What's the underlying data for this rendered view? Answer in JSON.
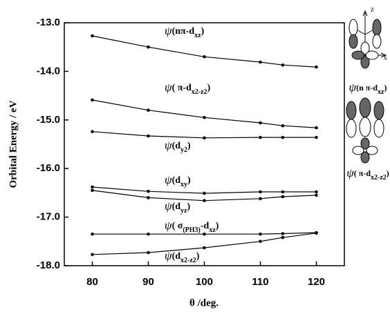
{
  "chart_data": {
    "type": "line",
    "y_label": "Orbital Energy / eV",
    "x_label": "θ /deg.",
    "xlim": [
      75,
      125
    ],
    "xticks": [
      80,
      90,
      100,
      110,
      120
    ],
    "ylim": [
      -18.0,
      -13.0
    ],
    "yticks": [
      {
        "value": -13.0,
        "label": "-13.0"
      },
      {
        "value": -14.0,
        "label": "-14.0"
      },
      {
        "value": -15.0,
        "label": "-15.0"
      },
      {
        "value": -16.0,
        "label": "-16.0"
      },
      {
        "value": -17.0,
        "label": "-17.0"
      },
      {
        "value": -18.0,
        "label": "-18.0"
      }
    ],
    "x": [
      80,
      90,
      100,
      110,
      114,
      120
    ],
    "series": [
      {
        "name": [
          "ψ",
          "(nπ-d",
          "xz",
          ")"
        ],
        "color": "#000",
        "values": [
          -13.27,
          -13.5,
          -13.7,
          -13.81,
          -13.87,
          -13.91
        ]
      },
      {
        "name": [
          "ψ",
          "( π-d",
          "x2-z2",
          ")"
        ],
        "color": "#000",
        "values": [
          -14.59,
          -14.8,
          -14.95,
          -15.06,
          -15.12,
          -15.16
        ]
      },
      {
        "name": [
          "ψ",
          "(d",
          "y2",
          ")"
        ],
        "color": "#000",
        "values": [
          -15.24,
          -15.33,
          -15.37,
          -15.36,
          -15.36,
          -15.36
        ]
      },
      {
        "name": [
          "ψ",
          "(d",
          "xy",
          ")"
        ],
        "color": "#000",
        "values": [
          -16.38,
          -16.47,
          -16.51,
          -16.48,
          -16.48,
          -16.48
        ]
      },
      {
        "name": [
          "ψ",
          "(d",
          "yz",
          ")"
        ],
        "color": "#000",
        "values": [
          -16.45,
          -16.6,
          -16.66,
          -16.62,
          -16.58,
          -16.55
        ]
      },
      {
        "name": [
          "ψ",
          "( σ",
          "(PH3)",
          "-d",
          "xz",
          ")"
        ],
        "color": "#000",
        "values": [
          -17.35,
          -17.35,
          -17.35,
          -17.35,
          -17.34,
          -17.32
        ]
      },
      {
        "name": [
          "ψ",
          "(d",
          "x2-z2",
          ")"
        ],
        "color": "#000",
        "values": [
          -17.77,
          -17.73,
          -17.63,
          -17.5,
          -17.42,
          -17.33
        ]
      }
    ]
  },
  "sketches": [
    {
      "axes": [
        "z",
        "x"
      ],
      "caption": [
        "ψ",
        "(n π-d",
        "xz",
        ")"
      ]
    },
    {
      "caption": [
        "ψ",
        "( π-d",
        "x2-z2",
        ")"
      ]
    }
  ]
}
